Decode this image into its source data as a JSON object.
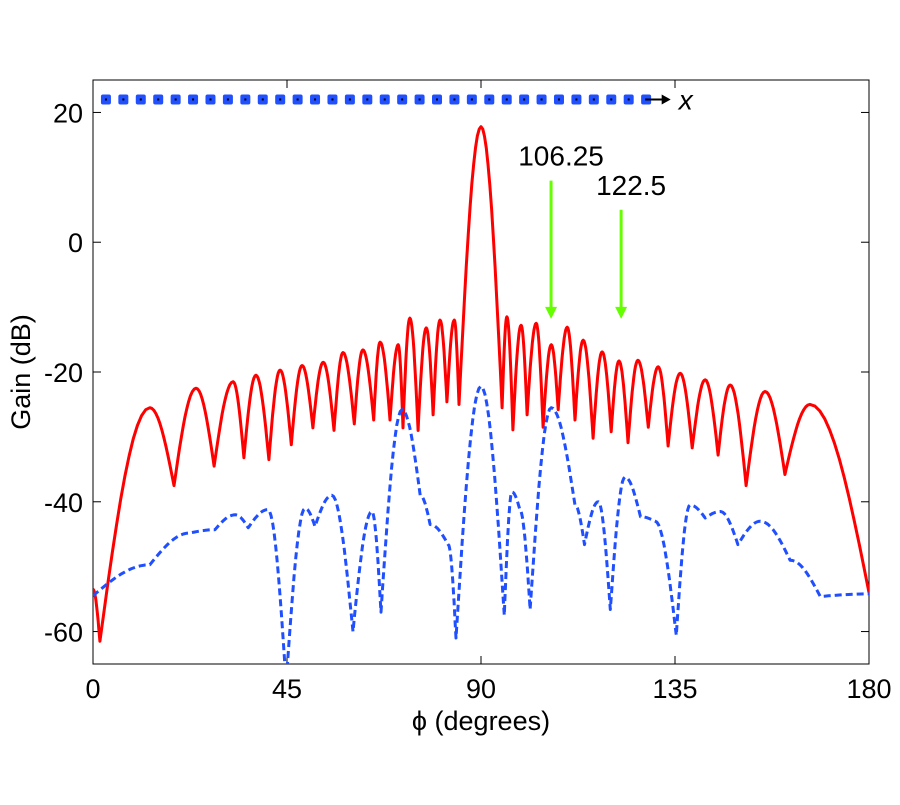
{
  "chart_data": {
    "type": "line",
    "title": "",
    "xlabel": "ϕ (degrees)",
    "ylabel": "Gain (dB)",
    "xlim": [
      0,
      180
    ],
    "ylim": [
      -65,
      25
    ],
    "xticks": [
      0,
      45,
      90,
      135,
      180
    ],
    "yticks": [
      -60,
      -40,
      -20,
      0,
      20
    ],
    "grid": false,
    "colors": {
      "red": "#ff0000",
      "blue": "#1f4fff",
      "green": "#66ff00",
      "dots": "#1f4fff"
    },
    "series": [
      {
        "name": "red-solid",
        "style": "solid",
        "color": "#ff0000",
        "points": [
          [
            0,
            -53.5
          ],
          [
            1.6,
            -61.5
          ],
          [
            13.2,
            -25.5
          ],
          [
            18.8,
            -37.5
          ],
          [
            23.9,
            -22.5
          ],
          [
            28.1,
            -34.5
          ],
          [
            32.5,
            -21.5
          ],
          [
            35,
            -33.2
          ],
          [
            37.8,
            -20.5
          ],
          [
            40.8,
            -33.5
          ],
          [
            43.4,
            -19.7
          ],
          [
            46,
            -31.2
          ],
          [
            48.5,
            -19
          ],
          [
            51,
            -28.6
          ],
          [
            53.4,
            -18.5
          ],
          [
            55.9,
            -29
          ],
          [
            58,
            -17
          ],
          [
            60.6,
            -28
          ],
          [
            62.6,
            -16.6
          ],
          [
            65.1,
            -27.4
          ],
          [
            66.6,
            -15.4
          ],
          [
            68.9,
            -27.4
          ],
          [
            70.8,
            -15.8
          ],
          [
            71.9,
            -28.6
          ],
          [
            73.5,
            -11.7
          ],
          [
            75.4,
            -29
          ],
          [
            77.3,
            -13.2
          ],
          [
            78.9,
            -26.6
          ],
          [
            80.5,
            -12
          ],
          [
            82.1,
            -24.6
          ],
          [
            83.8,
            -12
          ],
          [
            84.9,
            -25
          ],
          [
            90,
            17.8
          ],
          [
            94.9,
            -25.5
          ],
          [
            96,
            -11.5
          ],
          [
            97.4,
            -28.9
          ],
          [
            99.3,
            -12.8
          ],
          [
            100.7,
            -26.6
          ],
          [
            102.8,
            -12.5
          ],
          [
            104.4,
            -28.5
          ],
          [
            106.3,
            -15.8
          ],
          [
            107.9,
            -25.8
          ],
          [
            110,
            -13.1
          ],
          [
            111.8,
            -27.4
          ],
          [
            113.7,
            -15.1
          ],
          [
            116,
            -30.2
          ],
          [
            118.1,
            -16.9
          ],
          [
            120.2,
            -29.2
          ],
          [
            122,
            -18.3
          ],
          [
            124.1,
            -30.9
          ],
          [
            126.4,
            -18.2
          ],
          [
            128.8,
            -28.5
          ],
          [
            131.1,
            -19.2
          ],
          [
            133.4,
            -31.4
          ],
          [
            136.2,
            -20.2
          ],
          [
            139,
            -31.7
          ],
          [
            142,
            -21.2
          ],
          [
            145,
            -32.8
          ],
          [
            147.8,
            -22
          ],
          [
            151.5,
            -37.5
          ],
          [
            155.9,
            -23
          ],
          [
            160.5,
            -35.8
          ],
          [
            166.3,
            -25
          ],
          [
            180,
            -54
          ]
        ]
      },
      {
        "name": "blue-dashed",
        "style": "dashed",
        "color": "#1f4fff",
        "points": [
          [
            0,
            -54.5
          ],
          [
            13.2,
            -49.7
          ],
          [
            22.5,
            -44.8
          ],
          [
            28.3,
            -44.3
          ],
          [
            33,
            -42
          ],
          [
            36,
            -44
          ],
          [
            40.6,
            -41.2
          ],
          [
            44.8,
            -68
          ],
          [
            49.2,
            -41
          ],
          [
            51.5,
            -43.8
          ],
          [
            55.4,
            -39
          ],
          [
            60.3,
            -60
          ],
          [
            64.7,
            -41.5
          ],
          [
            66.8,
            -57
          ],
          [
            71.7,
            -25.8
          ],
          [
            75.9,
            -39
          ],
          [
            78.2,
            -43.5
          ],
          [
            82.4,
            -46.6
          ],
          [
            84.2,
            -61
          ],
          [
            90,
            -22.2
          ],
          [
            95.4,
            -57.5
          ],
          [
            97.2,
            -38.5
          ],
          [
            99,
            -41.2
          ],
          [
            101.4,
            -56.6
          ],
          [
            106.3,
            -25.5
          ],
          [
            111.8,
            -40.5
          ],
          [
            114,
            -46.6
          ],
          [
            117.2,
            -40
          ],
          [
            120,
            -56.6
          ],
          [
            123.4,
            -36.2
          ],
          [
            127,
            -42.3
          ],
          [
            130.4,
            -43
          ],
          [
            135.3,
            -60.6
          ],
          [
            138.5,
            -40.5
          ],
          [
            142,
            -42.5
          ],
          [
            145.5,
            -41.5
          ],
          [
            149.6,
            -46.6
          ],
          [
            154.8,
            -43
          ],
          [
            161.7,
            -49
          ],
          [
            168.7,
            -54.6
          ],
          [
            180,
            -54.2
          ]
        ]
      }
    ],
    "array": {
      "count": 32,
      "gain": 22,
      "phi_start": 3,
      "phi_end": 128.3,
      "arrow_end": 134,
      "label": "x"
    },
    "annotations": [
      {
        "label": "106.25",
        "x": 106.25,
        "arrow_from": 9.5,
        "arrow_to": -11.5
      },
      {
        "label": "122.5",
        "x": 122.5,
        "arrow_from": 5,
        "arrow_to": -11.5
      }
    ]
  }
}
